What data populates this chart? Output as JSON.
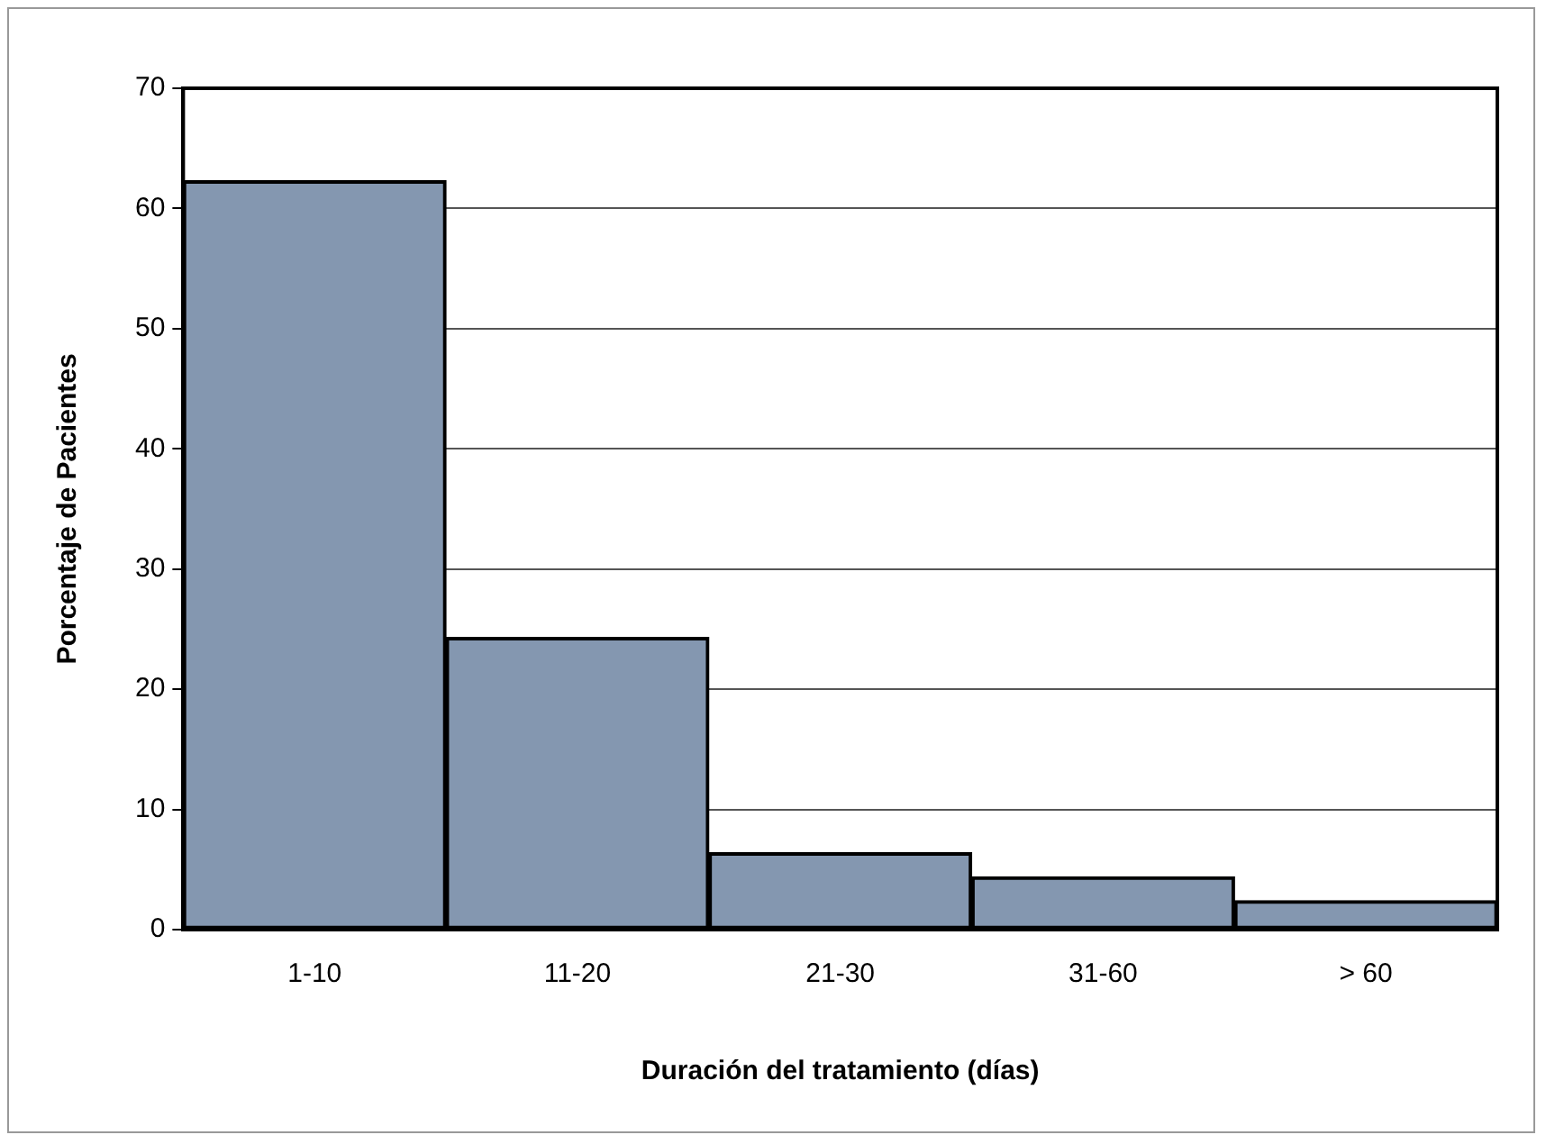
{
  "chart_data": {
    "type": "bar",
    "xlabel": "Duración del tratamiento (días)",
    "ylabel": "Porcentaje de Pacientes",
    "categories": [
      "1-10",
      "11-20",
      "21-30",
      "31-60",
      "> 60"
    ],
    "values": [
      62.3,
      24.3,
      6.4,
      4.4,
      2.4
    ],
    "color": "#8497b0",
    "ylim": [
      0,
      70
    ],
    "yticks": [
      0,
      10,
      20,
      30,
      40,
      50,
      60,
      70
    ],
    "grid": "y"
  }
}
